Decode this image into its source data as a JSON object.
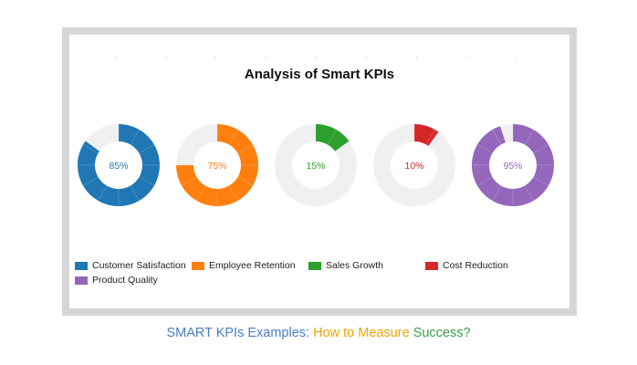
{
  "chart_data": {
    "type": "donut",
    "title": "Analysis of Smart KPIs",
    "categories": [
      "Customer Satisfaction",
      "Employee Retention",
      "Sales Growth",
      "Cost Reduction",
      "Product Quality"
    ],
    "values": [
      85,
      75,
      15,
      10,
      95
    ],
    "value_labels": [
      "85%",
      "75%",
      "15%",
      "10%",
      "95%"
    ],
    "colors": [
      "#1f77b4",
      "#ff7f0e",
      "#2ca02c",
      "#d62728",
      "#9467bd"
    ],
    "remainder_color": "#f0f0f0",
    "unit": "%",
    "max": 100,
    "legend_position": "bottom-left"
  },
  "caption": {
    "part1": "SMART KPIs Examples: ",
    "part2": "How to Measure ",
    "part3": "Success?",
    "colors": [
      "#4a7cc7",
      "#f0a500",
      "#3aa048"
    ]
  }
}
